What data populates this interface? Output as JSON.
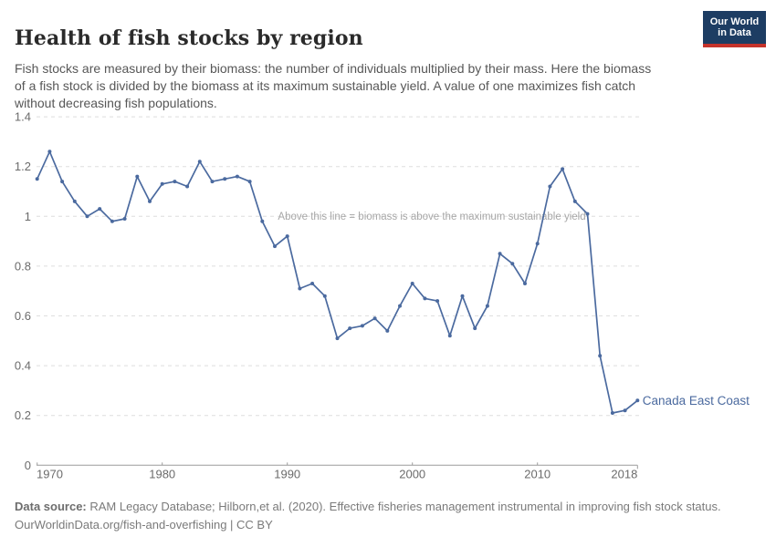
{
  "header": {
    "title": "Health of fish stocks by region",
    "subtitle": "Fish stocks are measured by their biomass: the number of individuals multiplied by their mass. Here the biomass\nof a fish stock is divided by the biomass at its maximum sustainable yield. A value of one maximizes fish catch\nwithout decreasing fish populations.",
    "logo": {
      "line1": "Our World",
      "line2": "in Data",
      "bg_color": "#1d3d63",
      "bar_color": "#c5332b"
    }
  },
  "chart_data": {
    "type": "line",
    "title": "Health of fish stocks by region",
    "xlabel": "",
    "ylabel": "",
    "xlim": [
      1970,
      2018
    ],
    "ylim": [
      0,
      1.4
    ],
    "grid": "horizontal-dashed",
    "x_ticks": [
      1970,
      1980,
      1990,
      2000,
      2010,
      2018
    ],
    "y_ticks": [
      0,
      0.2,
      0.4,
      0.6,
      0.8,
      1,
      1.2,
      1.4
    ],
    "y_tick_labels": [
      "0",
      "0.2",
      "0.4",
      "0.6",
      "0.8",
      "1",
      "1.2",
      "1.4"
    ],
    "annotation": "Above this line = biomass is above the maximum sustainable yield",
    "annotation_value": 1,
    "series": [
      {
        "name": "Canada East Coast",
        "color": "#4b6a9f",
        "x": [
          1970,
          1971,
          1972,
          1973,
          1974,
          1975,
          1976,
          1977,
          1978,
          1979,
          1980,
          1981,
          1982,
          1983,
          1984,
          1985,
          1986,
          1987,
          1988,
          1989,
          1990,
          1991,
          1992,
          1993,
          1994,
          1995,
          1996,
          1997,
          1998,
          1999,
          2000,
          2001,
          2002,
          2003,
          2004,
          2005,
          2006,
          2007,
          2008,
          2009,
          2010,
          2011,
          2012,
          2013,
          2014,
          2015,
          2016,
          2017,
          2018
        ],
        "values": [
          1.15,
          1.26,
          1.14,
          1.06,
          1.0,
          1.03,
          0.98,
          0.99,
          1.16,
          1.06,
          1.13,
          1.14,
          1.12,
          1.22,
          1.14,
          1.15,
          1.16,
          1.14,
          0.98,
          0.88,
          0.92,
          0.71,
          0.73,
          0.68,
          0.51,
          0.55,
          0.56,
          0.59,
          0.54,
          0.64,
          0.73,
          0.67,
          0.66,
          0.52,
          0.68,
          0.55,
          0.64,
          0.85,
          0.81,
          0.73,
          0.89,
          1.12,
          1.19,
          1.06,
          1.01,
          0.44,
          0.21,
          0.22,
          0.26
        ]
      }
    ],
    "colors": {
      "gridline": "#dedede",
      "axis": "#9c9c9c",
      "tick_label": "#6b6b6b",
      "annotation_text": "#a7a7a7"
    }
  },
  "footer": {
    "source_prefix": "Data source:",
    "source_text": " RAM Legacy Database; Hilborn,et al. (2020). Effective fisheries management instrumental in improving fish stock status.",
    "license_line": "OurWorldinData.org/fish-and-overfishing | CC BY"
  }
}
